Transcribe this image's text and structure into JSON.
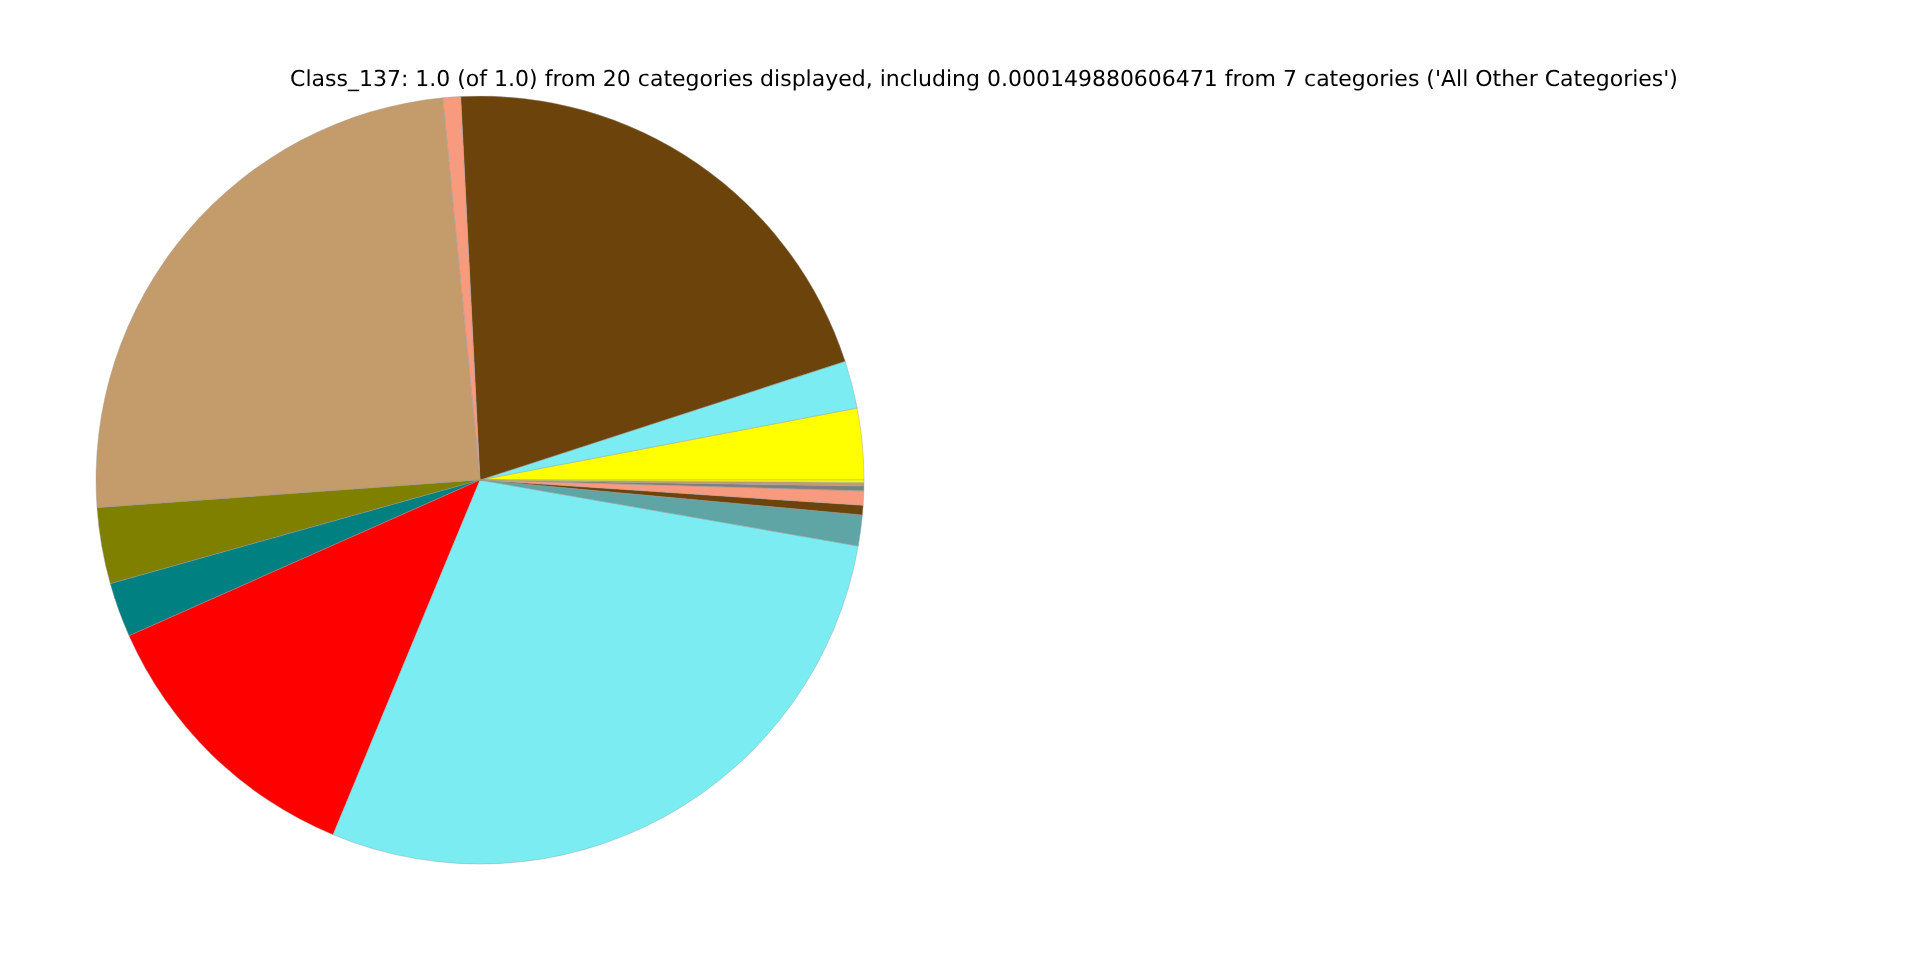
{
  "chart_data": {
    "type": "pie",
    "title": "Class_137: 1.0 (of 1.0) from 20 categories displayed, including 0.000149880606471 from 7 categories ('All Other Categories')",
    "categories": [
      null,
      null,
      null,
      null,
      null,
      null,
      null,
      null,
      null,
      null,
      null,
      null,
      null,
      null,
      null
    ],
    "values": [
      3.0,
      2.0,
      20.8,
      0.75,
      24.6,
      3.2,
      2.3,
      12.1,
      28.5,
      1.3,
      0.4,
      0.6,
      0.2,
      0.15,
      0.1
    ],
    "colors": [
      "#ffff00",
      "#7aecf2",
      "#6b430b",
      "#f79a7e",
      "#c49c6b",
      "#7f7f00",
      "#008080",
      "#ff0000",
      "#7aecf2",
      "#5fa5a5",
      "#6b430b",
      "#f79a7e",
      "#7f7f7f",
      "#c49c6b",
      "#ffff00"
    ]
  }
}
